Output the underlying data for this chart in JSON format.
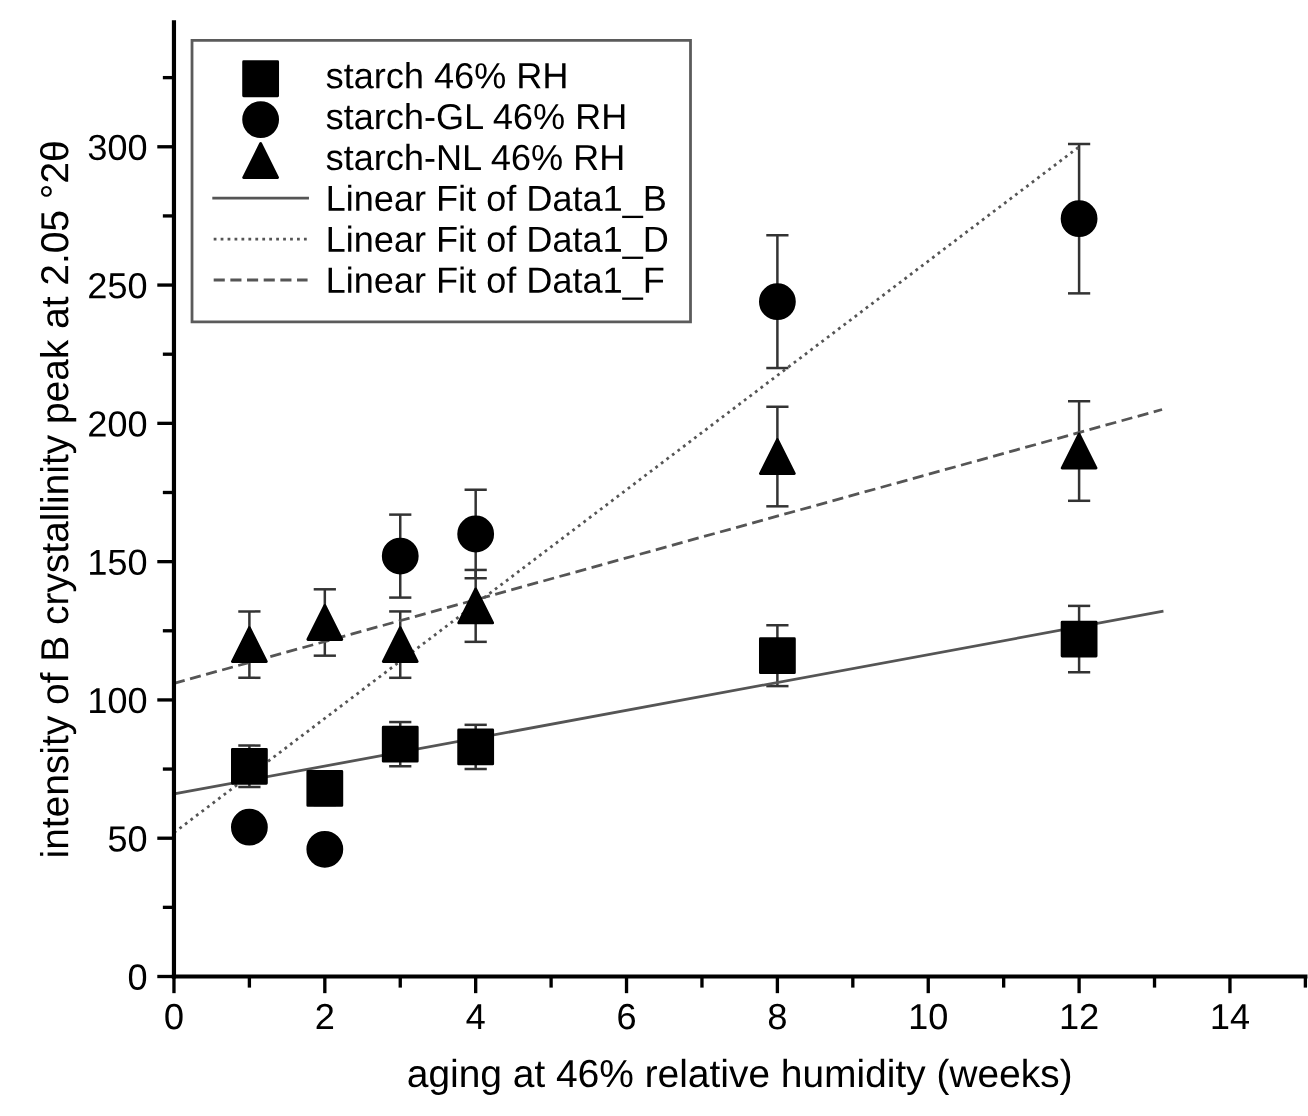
{
  "chart_data": {
    "type": "scatter",
    "xlabel": "aging at 46% relative humidity (weeks)",
    "ylabel": "intensity of B crystallinity peak at 2.05 °2θ",
    "xlim": [
      0,
      15
    ],
    "ylim": [
      0,
      345
    ],
    "xticks": [
      0,
      2,
      4,
      6,
      8,
      10,
      12,
      14
    ],
    "yticks": [
      0,
      50,
      100,
      150,
      200,
      250,
      300
    ],
    "grid": false,
    "legend": "top left",
    "series": [
      {
        "name": "starch 46% RH",
        "color": "#000000",
        "marker": "square",
        "x": [
          1,
          2,
          3,
          4,
          8,
          12
        ],
        "values": [
          76,
          68,
          84,
          83,
          116,
          122
        ],
        "errors": [
          7.5,
          6,
          8,
          8,
          11,
          12
        ]
      },
      {
        "name": "starch-GL 46% RH",
        "color": "#000000",
        "marker": "circle",
        "x": [
          1,
          2,
          3,
          4,
          8,
          12
        ],
        "values": [
          54,
          46,
          152,
          160,
          244,
          274
        ],
        "errors": [
          null,
          null,
          15,
          16,
          24,
          27
        ]
      },
      {
        "name": "starch-NL 46% RH",
        "color": "#000000",
        "marker": "triangle",
        "x": [
          1,
          2,
          3,
          4,
          8,
          12
        ],
        "values": [
          120,
          128,
          120,
          134,
          188,
          190
        ],
        "errors": [
          12,
          12,
          12,
          13,
          18,
          18
        ]
      },
      {
        "name": "Linear Fit of Data1_B",
        "type": "line",
        "color": "#555555",
        "line_style": "solid",
        "marker": "none",
        "x": [
          0,
          13.1
        ],
        "values": [
          66,
          132
        ]
      },
      {
        "name": "Linear Fit of Data1_D",
        "type": "line",
        "color": "#555555",
        "line_style": "dotted",
        "marker": "none",
        "x": [
          0,
          12
        ],
        "values": [
          52,
          300
        ]
      },
      {
        "name": "Linear Fit of Data1_F",
        "type": "line",
        "color": "#555555",
        "line_style": "dashed",
        "marker": "none",
        "x": [
          0,
          13.1
        ],
        "values": [
          106,
          205
        ]
      }
    ]
  }
}
